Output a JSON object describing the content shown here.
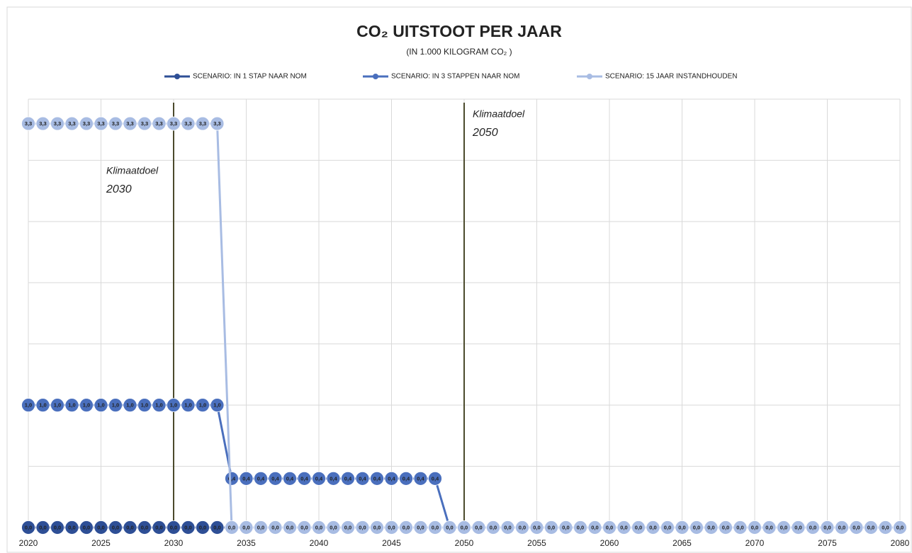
{
  "chart_data": {
    "type": "line",
    "title": "CO₂ UITSTOOT PER JAAR",
    "subtitle": "(IN 1.000 KILOGRAM CO₂ )",
    "x": [
      2020,
      2021,
      2022,
      2023,
      2024,
      2025,
      2026,
      2027,
      2028,
      2029,
      2030,
      2031,
      2032,
      2033,
      2034,
      2035,
      2036,
      2037,
      2038,
      2039,
      2040,
      2041,
      2042,
      2043,
      2044,
      2045,
      2046,
      2047,
      2048,
      2049,
      2050,
      2051,
      2052,
      2053,
      2054,
      2055,
      2056,
      2057,
      2058,
      2059,
      2060,
      2061,
      2062,
      2063,
      2064,
      2065,
      2066,
      2067,
      2068,
      2069,
      2070,
      2071,
      2072,
      2073,
      2074,
      2075,
      2076,
      2077,
      2078,
      2079,
      2080
    ],
    "xlim": [
      2020,
      2080
    ],
    "xticks": [
      2020,
      2025,
      2030,
      2035,
      2040,
      2045,
      2050,
      2055,
      2060,
      2065,
      2070,
      2075,
      2080
    ],
    "ylim": [
      0,
      3.5
    ],
    "yticks": [
      0,
      0.5,
      1,
      1.5,
      2,
      2.5,
      3,
      3.5
    ],
    "grid": true,
    "legend": "top",
    "series": [
      {
        "name": "SCENARIO: IN 1 STAP NAAR NOM",
        "color": "#2e4f96",
        "values": [
          0,
          0,
          0,
          0,
          0,
          0,
          0,
          0,
          0,
          0,
          0,
          0,
          0,
          0,
          0,
          0,
          0,
          0,
          0,
          0,
          0,
          0,
          0,
          0,
          0,
          0,
          0,
          0,
          0,
          0,
          0,
          0,
          0,
          0,
          0,
          0,
          0,
          0,
          0,
          0,
          0,
          0,
          0,
          0,
          0,
          0,
          0,
          0,
          0,
          0,
          0,
          0,
          0,
          0,
          0,
          0,
          0,
          0,
          0,
          0,
          0
        ],
        "value_labels": [
          "0,0",
          "0,0",
          "0,0",
          "0,0",
          "0,0",
          "0,0",
          "0,0",
          "0,0",
          "0,0",
          "0,0",
          "0,0",
          "0,0",
          "0,0",
          "0,0",
          "0,0",
          "0,0",
          "0,0",
          "0,0",
          "0,0",
          "0,0",
          "0,0",
          "0,0",
          "0,0",
          "0,0",
          "0,0",
          "0,0",
          "0,0",
          "0,0",
          "0,0",
          "0,0",
          "0,0",
          "0,0",
          "0,0",
          "0,0",
          "0,0",
          "0,0",
          "0,0",
          "0,0",
          "0,0",
          "0,0",
          "0,0",
          "0,0",
          "0,0",
          "0,0",
          "0,0",
          "0,0",
          "0,0",
          "0,0",
          "0,0",
          "0,0",
          "0,0",
          "0,0",
          "0,0",
          "0,0",
          "0,0",
          "0,0",
          "0,0",
          "0,0",
          "0,0",
          "0,0",
          "0,0"
        ]
      },
      {
        "name": "SCENARIO: IN 3 STAPPEN NAAR NOM",
        "color": "#4a6fbd",
        "values": [
          1.0,
          1.0,
          1.0,
          1.0,
          1.0,
          1.0,
          1.0,
          1.0,
          1.0,
          1.0,
          1.0,
          1.0,
          1.0,
          1.0,
          0.4,
          0.4,
          0.4,
          0.4,
          0.4,
          0.4,
          0.4,
          0.4,
          0.4,
          0.4,
          0.4,
          0.4,
          0.4,
          0.4,
          0.4,
          0,
          0,
          0,
          0,
          0,
          0,
          0,
          0,
          0,
          0,
          0,
          0,
          0,
          0,
          0,
          0,
          0,
          0,
          0,
          0,
          0,
          0,
          0,
          0,
          0,
          0,
          0,
          0,
          0,
          0,
          0,
          0
        ],
        "value_labels": [
          "1,0",
          "1,0",
          "1,0",
          "1,0",
          "1,0",
          "1,0",
          "1,0",
          "1,0",
          "1,0",
          "1,0",
          "1,0",
          "1,0",
          "1,0",
          "1,0",
          "0,4",
          "0,4",
          "0,4",
          "0,4",
          "0,4",
          "0,4",
          "0,4",
          "0,4",
          "0,4",
          "0,4",
          "0,4",
          "0,4",
          "0,4",
          "0,4",
          "0,4",
          "0,0",
          "0,0",
          "0,0",
          "0,0",
          "0,0",
          "0,0",
          "0,0",
          "0,0",
          "0,0",
          "0,0",
          "0,0",
          "0,0",
          "0,0",
          "0,0",
          "0,0",
          "0,0",
          "0,0",
          "0,0",
          "0,0",
          "0,0",
          "0,0",
          "0,0",
          "0,0",
          "0,0",
          "0,0",
          "0,0",
          "0,0",
          "0,0",
          "0,0",
          "0,0",
          "0,0",
          "0,0"
        ]
      },
      {
        "name": "SCENARIO: 15 JAAR INSTANDHOUDEN",
        "color": "#a8bce3",
        "values": [
          3.3,
          3.3,
          3.3,
          3.3,
          3.3,
          3.3,
          3.3,
          3.3,
          3.3,
          3.3,
          3.3,
          3.3,
          3.3,
          3.3,
          0,
          0,
          0,
          0,
          0,
          0,
          0,
          0,
          0,
          0,
          0,
          0,
          0,
          0,
          0,
          0,
          0,
          0,
          0,
          0,
          0,
          0,
          0,
          0,
          0,
          0,
          0,
          0,
          0,
          0,
          0,
          0,
          0,
          0,
          0,
          0,
          0,
          0,
          0,
          0,
          0,
          0,
          0,
          0,
          0,
          0,
          0
        ],
        "value_labels": [
          "3,3",
          "3,3",
          "3,3",
          "3,3",
          "3,3",
          "3,3",
          "3,3",
          "3,3",
          "3,3",
          "3,3",
          "3,3",
          "3,3",
          "3,3",
          "3,3",
          "0,0",
          "0,0",
          "0,0",
          "0,0",
          "0,0",
          "0,0",
          "0,0",
          "0,0",
          "0,0",
          "0,0",
          "0,0",
          "0,0",
          "0,0",
          "0,0",
          "0,0",
          "0,0",
          "0,0",
          "0,0",
          "0,0",
          "0,0",
          "0,0",
          "0,0",
          "0,0",
          "0,0",
          "0,0",
          "0,0",
          "0,0",
          "0,0",
          "0,0",
          "0,0",
          "0,0",
          "0,0",
          "0,0",
          "0,0",
          "0,0",
          "0,0",
          "0,0",
          "0,0",
          "0,0",
          "0,0",
          "0,0",
          "0,0",
          "0,0",
          "0,0",
          "0,0",
          "0,0",
          "0,0"
        ]
      }
    ],
    "annotations": [
      {
        "x": 2030,
        "color": "#4b4a2c",
        "lines": [
          "Klimaatdoel",
          "2030"
        ]
      },
      {
        "x": 2050,
        "color": "#4b4a2c",
        "lines": [
          "Klimaatdoel",
          "2050"
        ]
      }
    ]
  }
}
